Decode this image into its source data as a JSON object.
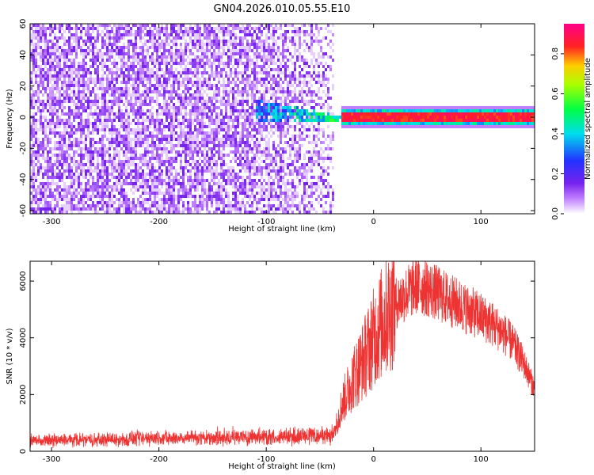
{
  "title": "GN04.2026.010.05.55.E10",
  "colors": {
    "snr_line": "#ee3333",
    "spectrogram_noise": "#7a22f0"
  },
  "chart_data": [
    {
      "type": "heatmap",
      "title": "GN04.2026.010.05.55.E10",
      "xlabel": "Height of straight line (km)",
      "ylabel": "Frequency (Hz)",
      "xlim": [
        -320,
        150
      ],
      "ylim": [
        -62,
        60
      ],
      "x_ticks": [
        -300,
        -200,
        -100,
        0,
        100
      ],
      "y_ticks": [
        -60,
        -40,
        -20,
        0,
        20,
        40,
        60
      ],
      "colorbar": {
        "label": "Normalized spectral amplitude",
        "range": [
          0.0,
          0.95
        ],
        "ticks": [
          0.0,
          0.2,
          0.4,
          0.6,
          0.8
        ],
        "colormap": "rainbow (white-violet-blue-cyan-green-yellow-red-pink)"
      },
      "features": {
        "broadband_noise_x_range": [
          -320,
          -37
        ],
        "noise_amplitude": 0.1,
        "transition_x_range": [
          -110,
          -30
        ],
        "transition_frequency_spread_hz": [
          -6,
          10
        ],
        "signal_line_x_range": [
          -30,
          150
        ],
        "signal_line_frequency_hz": 0,
        "signal_line_peak_amplitude": 0.95
      }
    },
    {
      "type": "line",
      "xlabel": "Height of straight line (km)",
      "ylabel": "SNR (10 * v/v)",
      "xlim": [
        -320,
        150
      ],
      "ylim": [
        0,
        6700
      ],
      "x_ticks": [
        -300,
        -200,
        -100,
        0,
        100
      ],
      "y_ticks": [
        0,
        2000,
        4000,
        6000
      ],
      "series": [
        {
          "x": [
            -320,
            -300,
            -250,
            -200,
            -150,
            -100,
            -60,
            -40,
            -35,
            -30,
            -20,
            -10,
            0,
            10,
            20,
            30,
            40,
            50,
            60,
            70,
            80,
            90,
            100,
            110,
            120,
            130,
            140,
            150
          ],
          "y": [
            350,
            370,
            420,
            480,
            520,
            560,
            590,
            600,
            900,
            1600,
            2500,
            3200,
            4000,
            4700,
            5200,
            5550,
            5850,
            5750,
            5550,
            5350,
            5150,
            4950,
            4750,
            4500,
            4200,
            3800,
            3100,
            2200
          ]
        }
      ]
    }
  ]
}
